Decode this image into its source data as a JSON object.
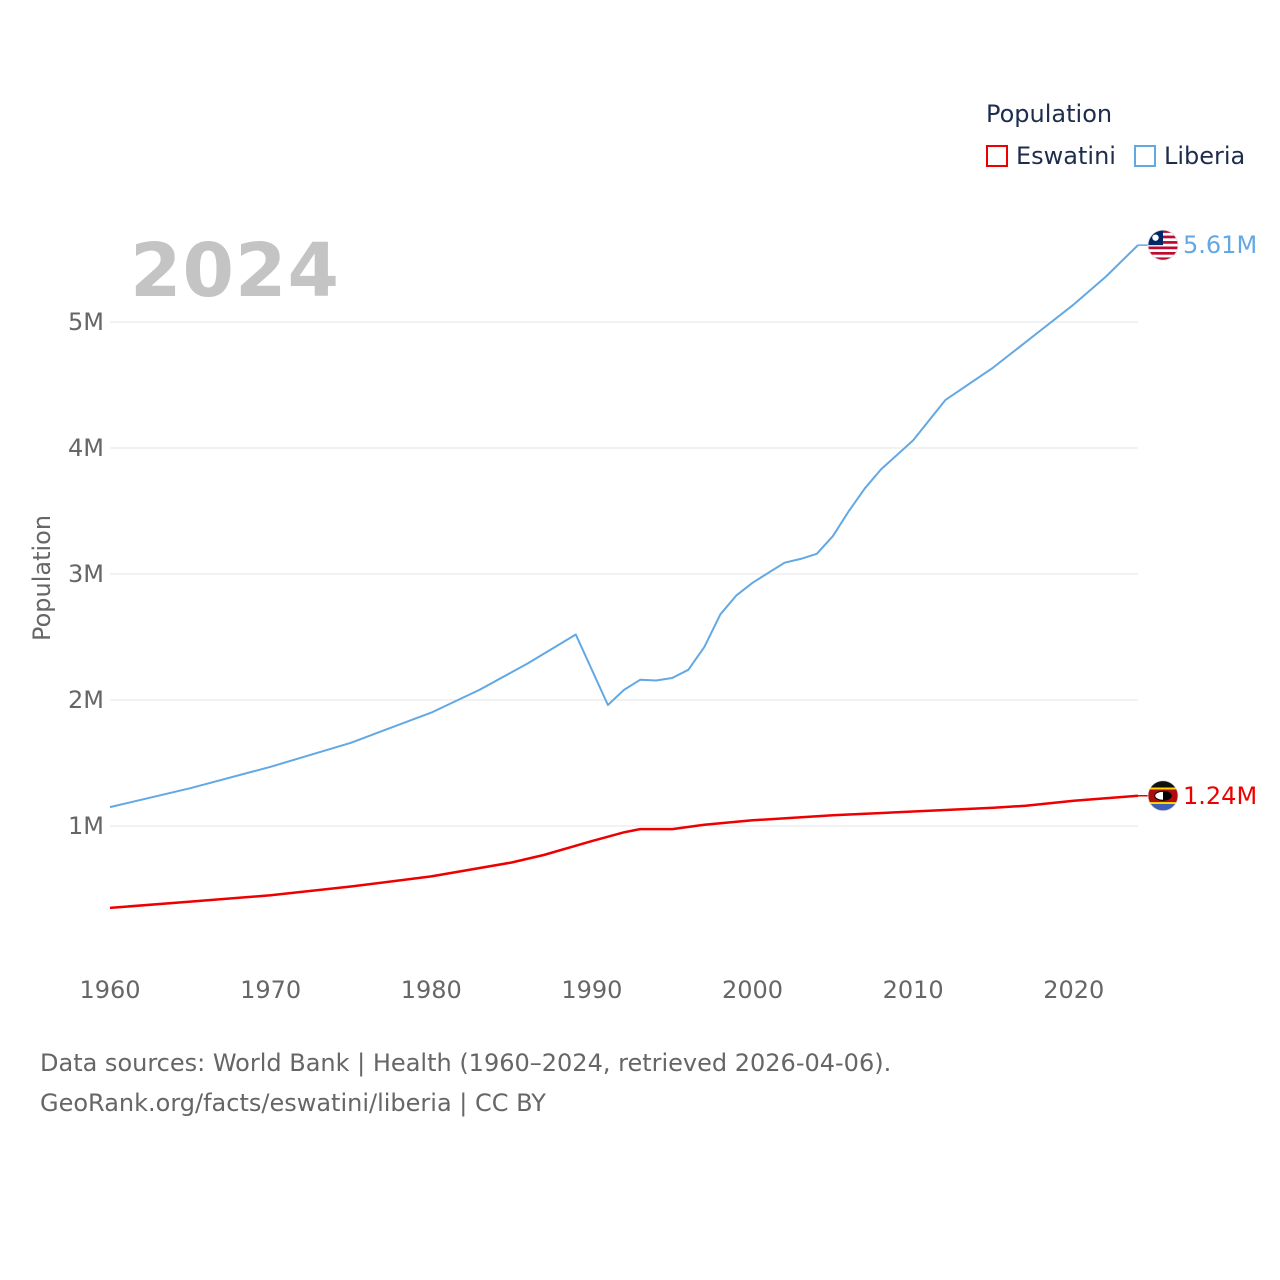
{
  "chart_data": {
    "type": "line",
    "legend_title": "Population",
    "big_year": "2024",
    "ylabel": "Population",
    "xlabel": "",
    "xlim": [
      1960,
      2024
    ],
    "ylim": [
      0,
      5800000
    ],
    "x_ticks": [
      "1960",
      "1970",
      "1980",
      "1990",
      "2000",
      "2010",
      "2020"
    ],
    "y_ticks": [
      {
        "value": 1000000,
        "label": "1M"
      },
      {
        "value": 2000000,
        "label": "2M"
      },
      {
        "value": 3000000,
        "label": "3M"
      },
      {
        "value": 4000000,
        "label": "4M"
      },
      {
        "value": 5000000,
        "label": "5M"
      }
    ],
    "grid": true,
    "legend_position": "top-right",
    "series": [
      {
        "name": "Eswatini",
        "color": "#ee0000",
        "end_label": "1.24M",
        "flag": "eswatini-flag",
        "points": [
          [
            1960,
            350000
          ],
          [
            1965,
            400000
          ],
          [
            1970,
            450000
          ],
          [
            1975,
            520000
          ],
          [
            1980,
            600000
          ],
          [
            1985,
            710000
          ],
          [
            1987,
            770000
          ],
          [
            1990,
            880000
          ],
          [
            1992,
            950000
          ],
          [
            1993,
            975000
          ],
          [
            1995,
            975000
          ],
          [
            1997,
            1010000
          ],
          [
            2000,
            1045000
          ],
          [
            2005,
            1085000
          ],
          [
            2010,
            1115000
          ],
          [
            2015,
            1145000
          ],
          [
            2017,
            1160000
          ],
          [
            2020,
            1200000
          ],
          [
            2024,
            1240000
          ]
        ]
      },
      {
        "name": "Liberia",
        "color": "#62a8e5",
        "end_label": "5.61M",
        "flag": "liberia-flag",
        "points": [
          [
            1960,
            1150000
          ],
          [
            1965,
            1300000
          ],
          [
            1970,
            1470000
          ],
          [
            1975,
            1660000
          ],
          [
            1980,
            1900000
          ],
          [
            1983,
            2080000
          ],
          [
            1986,
            2290000
          ],
          [
            1989,
            2520000
          ],
          [
            1991,
            1960000
          ],
          [
            1992,
            2080000
          ],
          [
            1993,
            2160000
          ],
          [
            1994,
            2155000
          ],
          [
            1995,
            2175000
          ],
          [
            1996,
            2240000
          ],
          [
            1997,
            2420000
          ],
          [
            1998,
            2680000
          ],
          [
            1999,
            2830000
          ],
          [
            2000,
            2930000
          ],
          [
            2002,
            3090000
          ],
          [
            2003,
            3120000
          ],
          [
            2004,
            3160000
          ],
          [
            2005,
            3300000
          ],
          [
            2006,
            3500000
          ],
          [
            2007,
            3680000
          ],
          [
            2008,
            3830000
          ],
          [
            2010,
            4060000
          ],
          [
            2012,
            4380000
          ],
          [
            2015,
            4640000
          ],
          [
            2018,
            4940000
          ],
          [
            2020,
            5140000
          ],
          [
            2022,
            5360000
          ],
          [
            2024,
            5610000
          ]
        ]
      }
    ]
  },
  "source": {
    "line1": "Data sources: World Bank | Health (1960–2024, retrieved 2026-04-06).",
    "line2": "GeoRank.org/facts/eswatini/liberia | CC BY"
  }
}
